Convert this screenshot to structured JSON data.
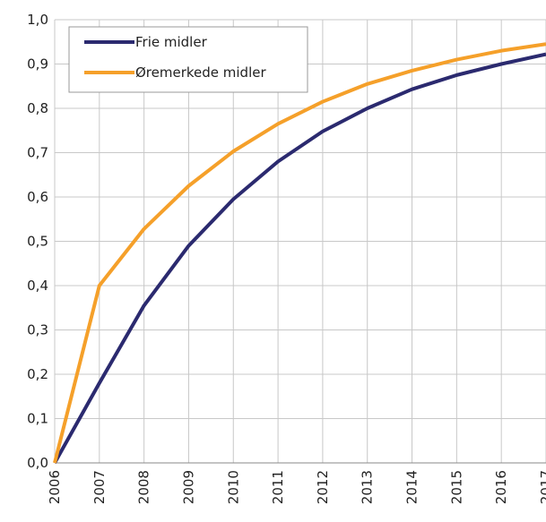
{
  "chart_data": {
    "type": "line",
    "x": [
      2006,
      2007,
      2008,
      2009,
      2010,
      2011,
      2012,
      2013,
      2014,
      2015,
      2016,
      2017
    ],
    "series": [
      {
        "name": "Frie midler",
        "color": "#2b2a6f",
        "values": [
          0,
          0.18,
          0.355,
          0.49,
          0.595,
          0.68,
          0.748,
          0.8,
          0.843,
          0.875,
          0.9,
          0.922
        ]
      },
      {
        "name": "Øremerkede midler",
        "color": "#f5a02a",
        "values": [
          0,
          0.4,
          0.528,
          0.625,
          0.703,
          0.765,
          0.815,
          0.855,
          0.885,
          0.91,
          0.93,
          0.945
        ]
      }
    ],
    "xlim": [
      2006,
      2017
    ],
    "xticks": [
      2006,
      2007,
      2008,
      2009,
      2010,
      2011,
      2012,
      2013,
      2014,
      2015,
      2016,
      2017
    ],
    "ylim": [
      0,
      1
    ],
    "yticks": [
      {
        "value": 0,
        "label": "0,0"
      },
      {
        "value": 0.1,
        "label": "0,1"
      },
      {
        "value": 0.2,
        "label": "0,2"
      },
      {
        "value": 0.3,
        "label": "0,3"
      },
      {
        "value": 0.4,
        "label": "0,4"
      },
      {
        "value": 0.5,
        "label": "0,5"
      },
      {
        "value": 0.6,
        "label": "0,6"
      },
      {
        "value": 0.7,
        "label": "0,7"
      },
      {
        "value": 0.8,
        "label": "0,8"
      },
      {
        "value": 0.9,
        "label": "0,9"
      },
      {
        "value": 1,
        "label": "1,0"
      }
    ],
    "grid": true,
    "legend": "upper left"
  }
}
